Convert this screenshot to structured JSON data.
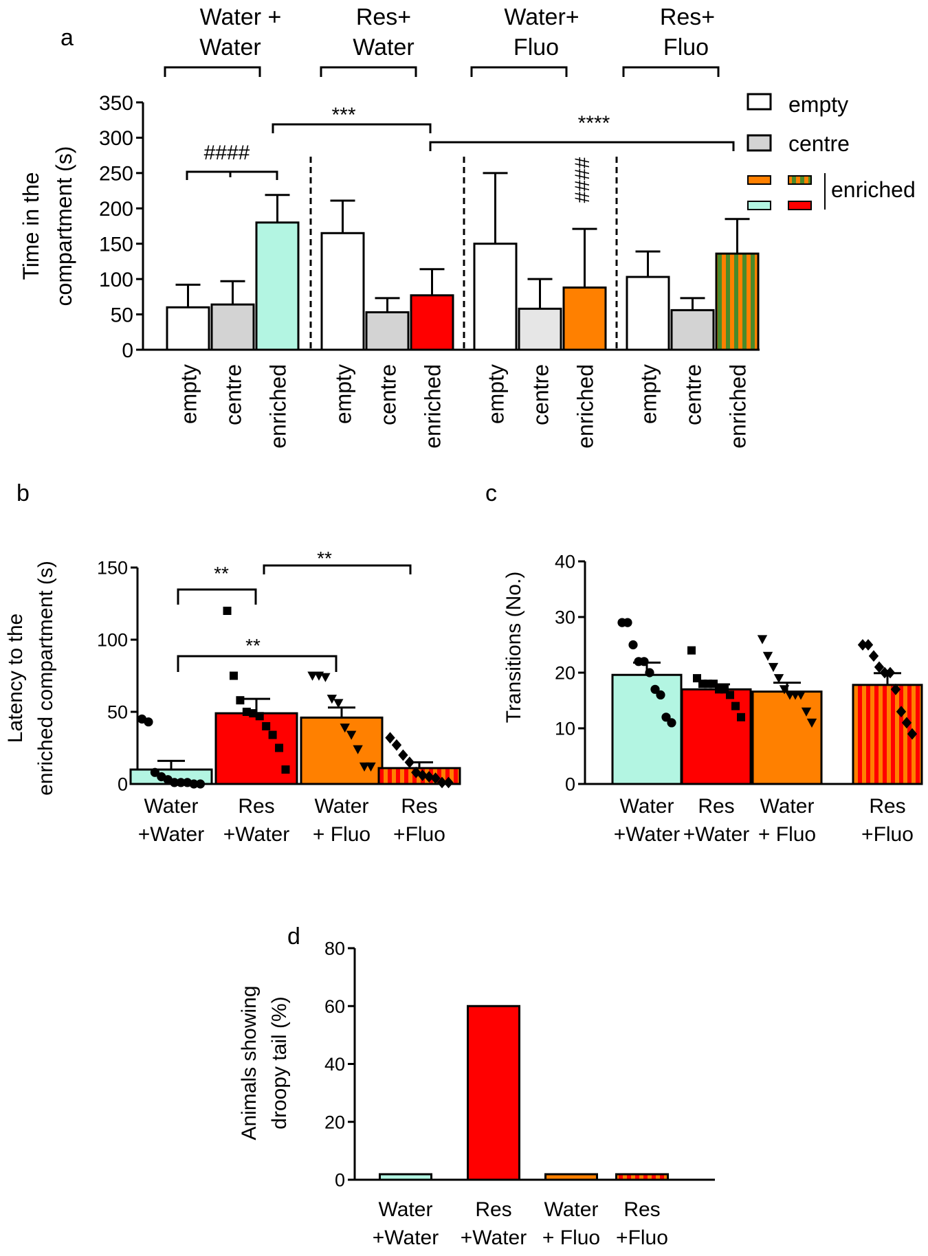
{
  "colors": {
    "white": "#ffffff",
    "grey": "#d3d3d3",
    "light_grey": "#e6e6e6",
    "mint": "#b3f5e2",
    "red": "#ff0000",
    "orange": "#ff8000",
    "green": "#4a8a2a",
    "black": "#000000"
  },
  "chart_data": [
    {
      "panel": "a",
      "type": "bar",
      "ylabel": "Time in the compartment  (s)",
      "ylim": [
        0,
        350
      ],
      "yticks": [
        0,
        50,
        100,
        150,
        200,
        250,
        300,
        350
      ],
      "groups": [
        {
          "label": "Water + Water",
          "bars": [
            {
              "category": "empty",
              "value": 60,
              "error": 32,
              "fill": "white"
            },
            {
              "category": "centre",
              "value": 64,
              "error": 33,
              "fill": "grey"
            },
            {
              "category": "enriched",
              "value": 180,
              "error": 39,
              "fill": "mint"
            }
          ]
        },
        {
          "label": "Res+ Water",
          "bars": [
            {
              "category": "empty",
              "value": 165,
              "error": 46,
              "fill": "white"
            },
            {
              "category": "centre",
              "value": 53,
              "error": 20,
              "fill": "grey"
            },
            {
              "category": "enriched",
              "value": 77,
              "error": 37,
              "fill": "red"
            }
          ]
        },
        {
          "label": "Water+ Fluo",
          "bars": [
            {
              "category": "empty",
              "value": 150,
              "error": 100,
              "fill": "white"
            },
            {
              "category": "centre",
              "value": 58,
              "error": 42,
              "fill": "light_grey"
            },
            {
              "category": "enriched",
              "value": 88,
              "error": 83,
              "fill": "orange"
            }
          ]
        },
        {
          "label": "Res+ Fluo",
          "bars": [
            {
              "category": "empty",
              "value": 103,
              "error": 36,
              "fill": "white"
            },
            {
              "category": "centre",
              "value": 56,
              "error": 17,
              "fill": "grey"
            },
            {
              "category": "enriched",
              "value": 136,
              "error": 49,
              "fill": "stripes_green_orange"
            }
          ]
        }
      ],
      "legend": {
        "position": "top-right",
        "items": [
          "empty",
          "centre",
          "enriched"
        ]
      },
      "annotations": {
        "hash4_a": "####",
        "stars3": "***",
        "stars4": "****",
        "hash4_b": "####"
      }
    },
    {
      "panel": "b",
      "type": "bar",
      "ylabel": "Latency to the enriched compartment (s)",
      "ylim": [
        0,
        150
      ],
      "yticks": [
        0,
        50,
        100,
        150
      ],
      "categories": [
        "Water +Water",
        "Res +Water",
        "Water + Fluo",
        "Res +Fluo"
      ],
      "values": [
        10,
        49,
        46,
        11
      ],
      "errors": [
        6,
        10,
        7,
        4
      ],
      "fills": [
        "mint",
        "red",
        "orange",
        "stripes_red_orange"
      ],
      "markers": [
        "circle",
        "square",
        "triangle-down",
        "diamond"
      ],
      "points": [
        [
          45,
          43,
          8,
          5,
          3,
          1,
          1,
          1,
          0,
          0
        ],
        [
          120,
          75,
          58,
          50,
          49,
          47,
          40,
          34,
          25,
          10
        ],
        [
          75,
          75,
          74,
          59,
          56,
          39,
          34,
          24,
          12,
          12
        ],
        [
          32,
          27,
          20,
          15,
          8,
          6,
          5,
          4,
          1,
          1
        ]
      ],
      "annotations": {
        "top_left": "**",
        "top_right": "**",
        "lower": "**"
      }
    },
    {
      "panel": "c",
      "type": "bar",
      "ylabel": "Transitions (No.)",
      "ylim": [
        0,
        40
      ],
      "yticks": [
        0,
        10,
        20,
        30,
        40
      ],
      "categories": [
        "Water +Water",
        "Res +Water",
        "Water + Fluo",
        "Res +Fluo"
      ],
      "values": [
        19.6,
        17.0,
        16.6,
        17.8
      ],
      "errors": [
        2.2,
        0.9,
        1.6,
        2.1
      ],
      "fills": [
        "mint",
        "red",
        "orange",
        "stripes_red_orange"
      ],
      "markers": [
        "circle",
        "square",
        "triangle-down",
        "diamond"
      ],
      "points": [
        [
          29,
          29,
          25,
          22,
          22,
          20,
          17,
          16,
          12,
          11
        ],
        [
          24,
          19,
          18,
          18,
          18,
          17,
          17,
          16,
          14,
          12
        ],
        [
          26,
          23,
          21,
          19,
          17,
          16,
          16,
          16,
          13,
          11
        ],
        [
          25,
          25,
          23,
          21,
          20,
          20,
          17,
          13,
          11,
          9
        ]
      ]
    },
    {
      "panel": "d",
      "type": "bar",
      "ylabel": "Animals showing droopy tail (%)",
      "ylim": [
        0,
        80
      ],
      "yticks": [
        0,
        20,
        40,
        60,
        80
      ],
      "categories": [
        "Water +Water",
        "Res +Water",
        "Water + Fluo",
        "Res +Fluo"
      ],
      "values": [
        0,
        60,
        0,
        0
      ],
      "fills": [
        "mint",
        "red",
        "orange",
        "stripes_red_orange"
      ]
    }
  ],
  "text": {
    "panel_a": "a",
    "panel_b": "b",
    "panel_c": "c",
    "panel_d": "d",
    "group_a1_l1": "Water +",
    "group_a1_l2": "Water",
    "group_a2_l1": "Res+",
    "group_a2_l2": "Water",
    "group_a3_l1": "Water+",
    "group_a3_l2": "Fluo",
    "group_a4_l1": "Res+",
    "group_a4_l2": "Fluo",
    "ylabel_a_l1": "Time in the",
    "ylabel_a_l2": "compartment  (s)",
    "ylabel_b_l1": "Latency to the",
    "ylabel_b_l2": "enriched compartment (s)",
    "ylabel_c": "Transitions (No.)",
    "ylabel_d_l1": "Animals showing",
    "ylabel_d_l2": "droopy tail (%)",
    "legend_empty": "empty",
    "legend_centre": "centre",
    "legend_enriched": "enriched",
    "x_l1": [
      "Water",
      "Res",
      "Water",
      "Res"
    ],
    "x_l2": [
      "+Water",
      "+Water",
      "+ Fluo",
      "+Fluo"
    ]
  }
}
